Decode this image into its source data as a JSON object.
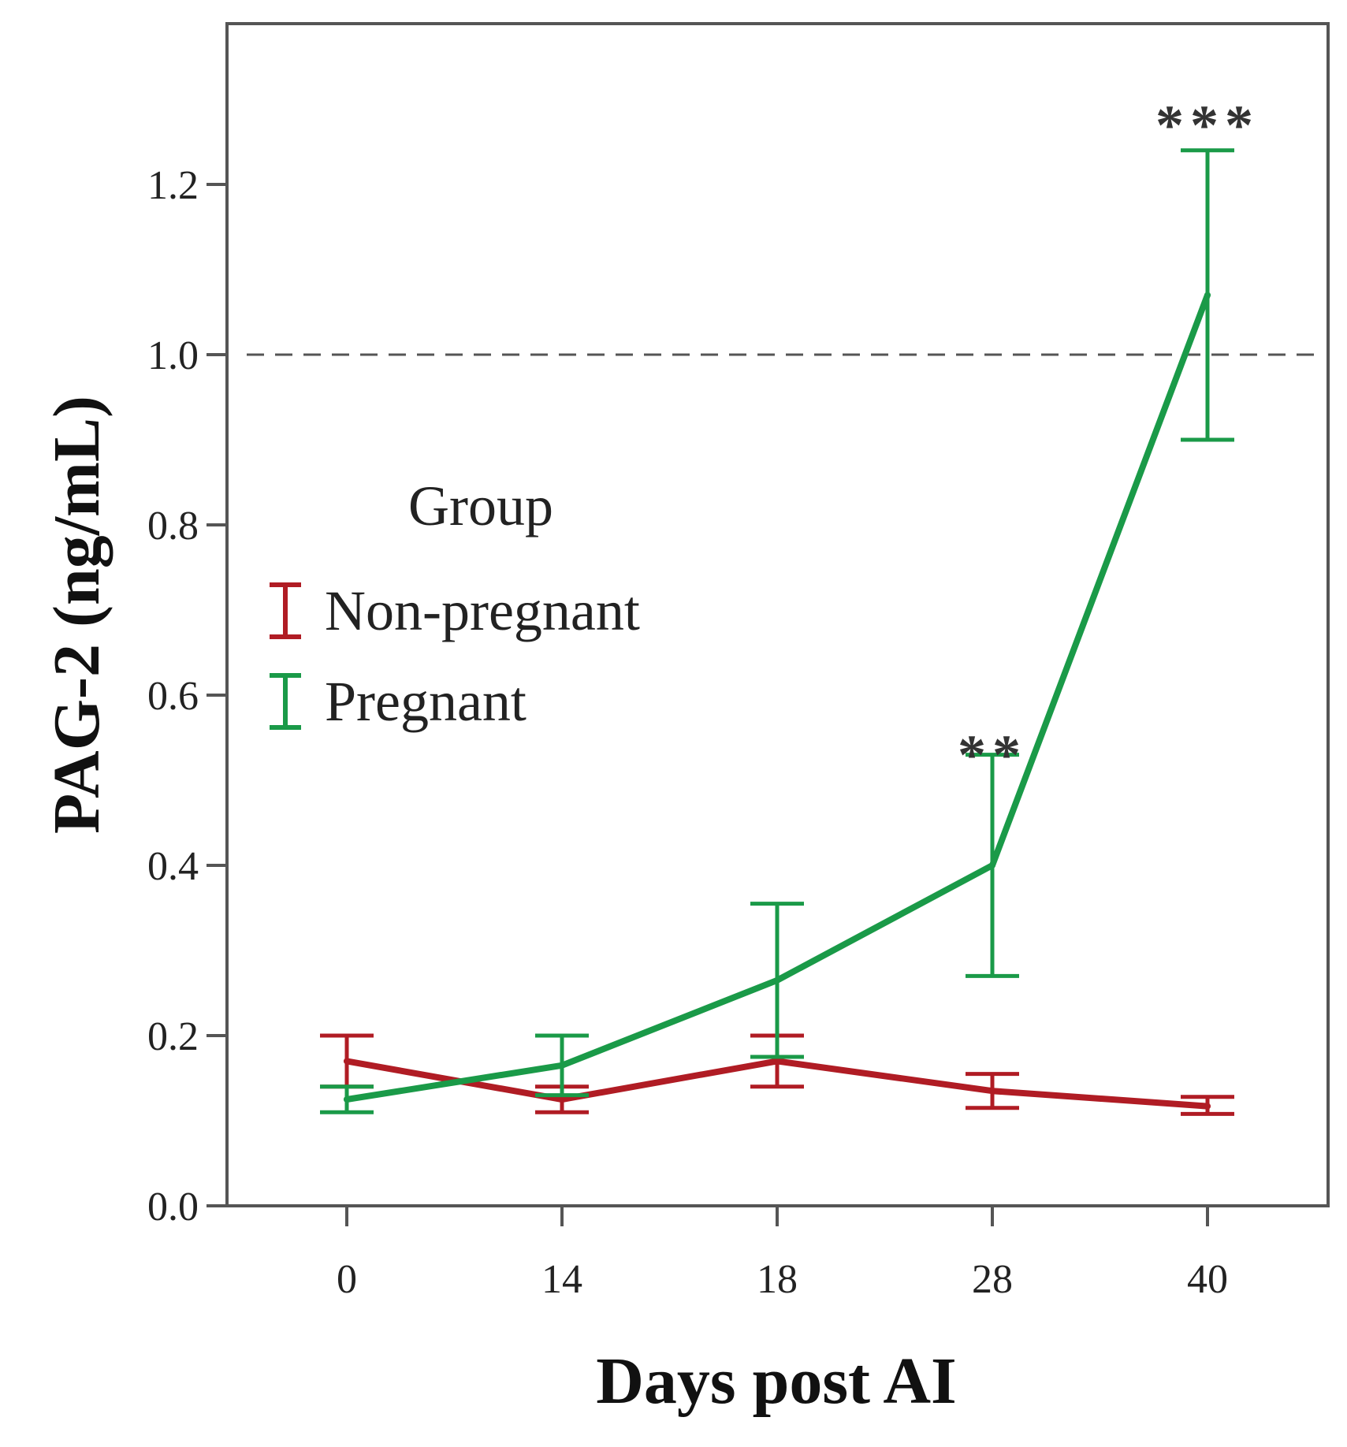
{
  "chart_data": {
    "type": "line",
    "title": "",
    "xlabel": "Days post AI",
    "ylabel": "PAG-2 (ng/mL)",
    "categories": [
      "0",
      "14",
      "18",
      "28",
      "40"
    ],
    "yticks": [
      "0.0",
      "0.2",
      "0.4",
      "0.6",
      "0.8",
      "1.0",
      "1.2"
    ],
    "ylim": [
      0,
      1.4
    ],
    "grid": false,
    "reference_line": {
      "y": 1.0,
      "style": "dashed"
    },
    "legend": {
      "title": "Group",
      "position": "center-left"
    },
    "series": [
      {
        "name": "Non-pregnant",
        "color": "#b01c24",
        "values": [
          0.17,
          0.125,
          0.17,
          0.135,
          0.117
        ],
        "error_low": [
          0.14,
          0.11,
          0.14,
          0.115,
          0.108
        ],
        "error_high": [
          0.2,
          0.14,
          0.2,
          0.155,
          0.128
        ]
      },
      {
        "name": "Pregnant",
        "color": "#1a9a48",
        "values": [
          0.125,
          0.165,
          0.265,
          0.4,
          1.07
        ],
        "error_low": [
          0.11,
          0.13,
          0.175,
          0.27,
          0.9
        ],
        "error_high": [
          0.14,
          0.2,
          0.355,
          0.53,
          1.24
        ]
      }
    ],
    "annotations": [
      {
        "category": "28",
        "text": "**",
        "y": 0.55
      },
      {
        "category": "40",
        "text": "***",
        "y": 1.29
      }
    ]
  }
}
